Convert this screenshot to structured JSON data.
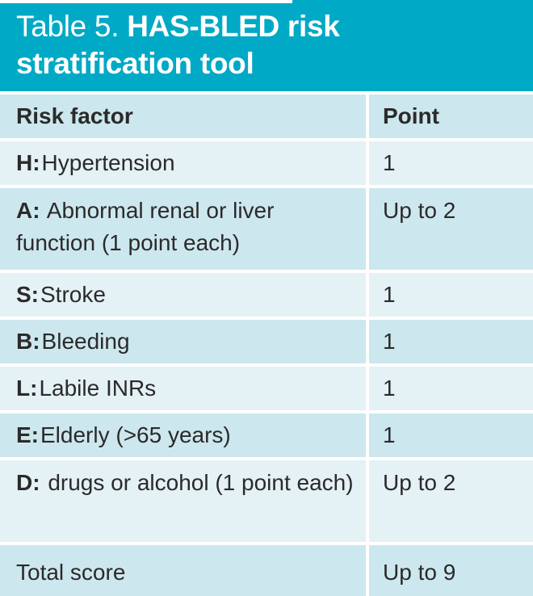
{
  "title": {
    "table_number": "Table 5.",
    "table_name": "HAS-BLED risk stratification tool"
  },
  "table": {
    "header": {
      "risk_factor": "Risk factor",
      "point": "Point"
    },
    "rows": [
      {
        "prefix": "H:",
        "label": "Hypertension",
        "point": "1"
      },
      {
        "prefix": "A:",
        "label": "Abnormal renal or liver function (1 point each)",
        "point": "Up to 2"
      },
      {
        "prefix": "S:",
        "label": "Stroke",
        "point": "1"
      },
      {
        "prefix": "B:",
        "label": "Bleeding",
        "point": "1"
      },
      {
        "prefix": "L:",
        "label": "Labile INRs",
        "point": "1"
      },
      {
        "prefix": "E:",
        "label": "Elderly (>65 years)",
        "point": "1"
      },
      {
        "prefix": "D:",
        "label": "drugs or alcohol (1 point each)",
        "point": "Up to 2"
      },
      {
        "prefix": "",
        "label": "Total score",
        "point": "Up to 9"
      }
    ]
  },
  "colors": {
    "banner_teal": "#00a9c5",
    "row_dark_blue": "#cde7ee",
    "row_light_blue": "#e4f1f5",
    "text_dark": "#2b2a2a",
    "title_text": "#ffffff"
  }
}
